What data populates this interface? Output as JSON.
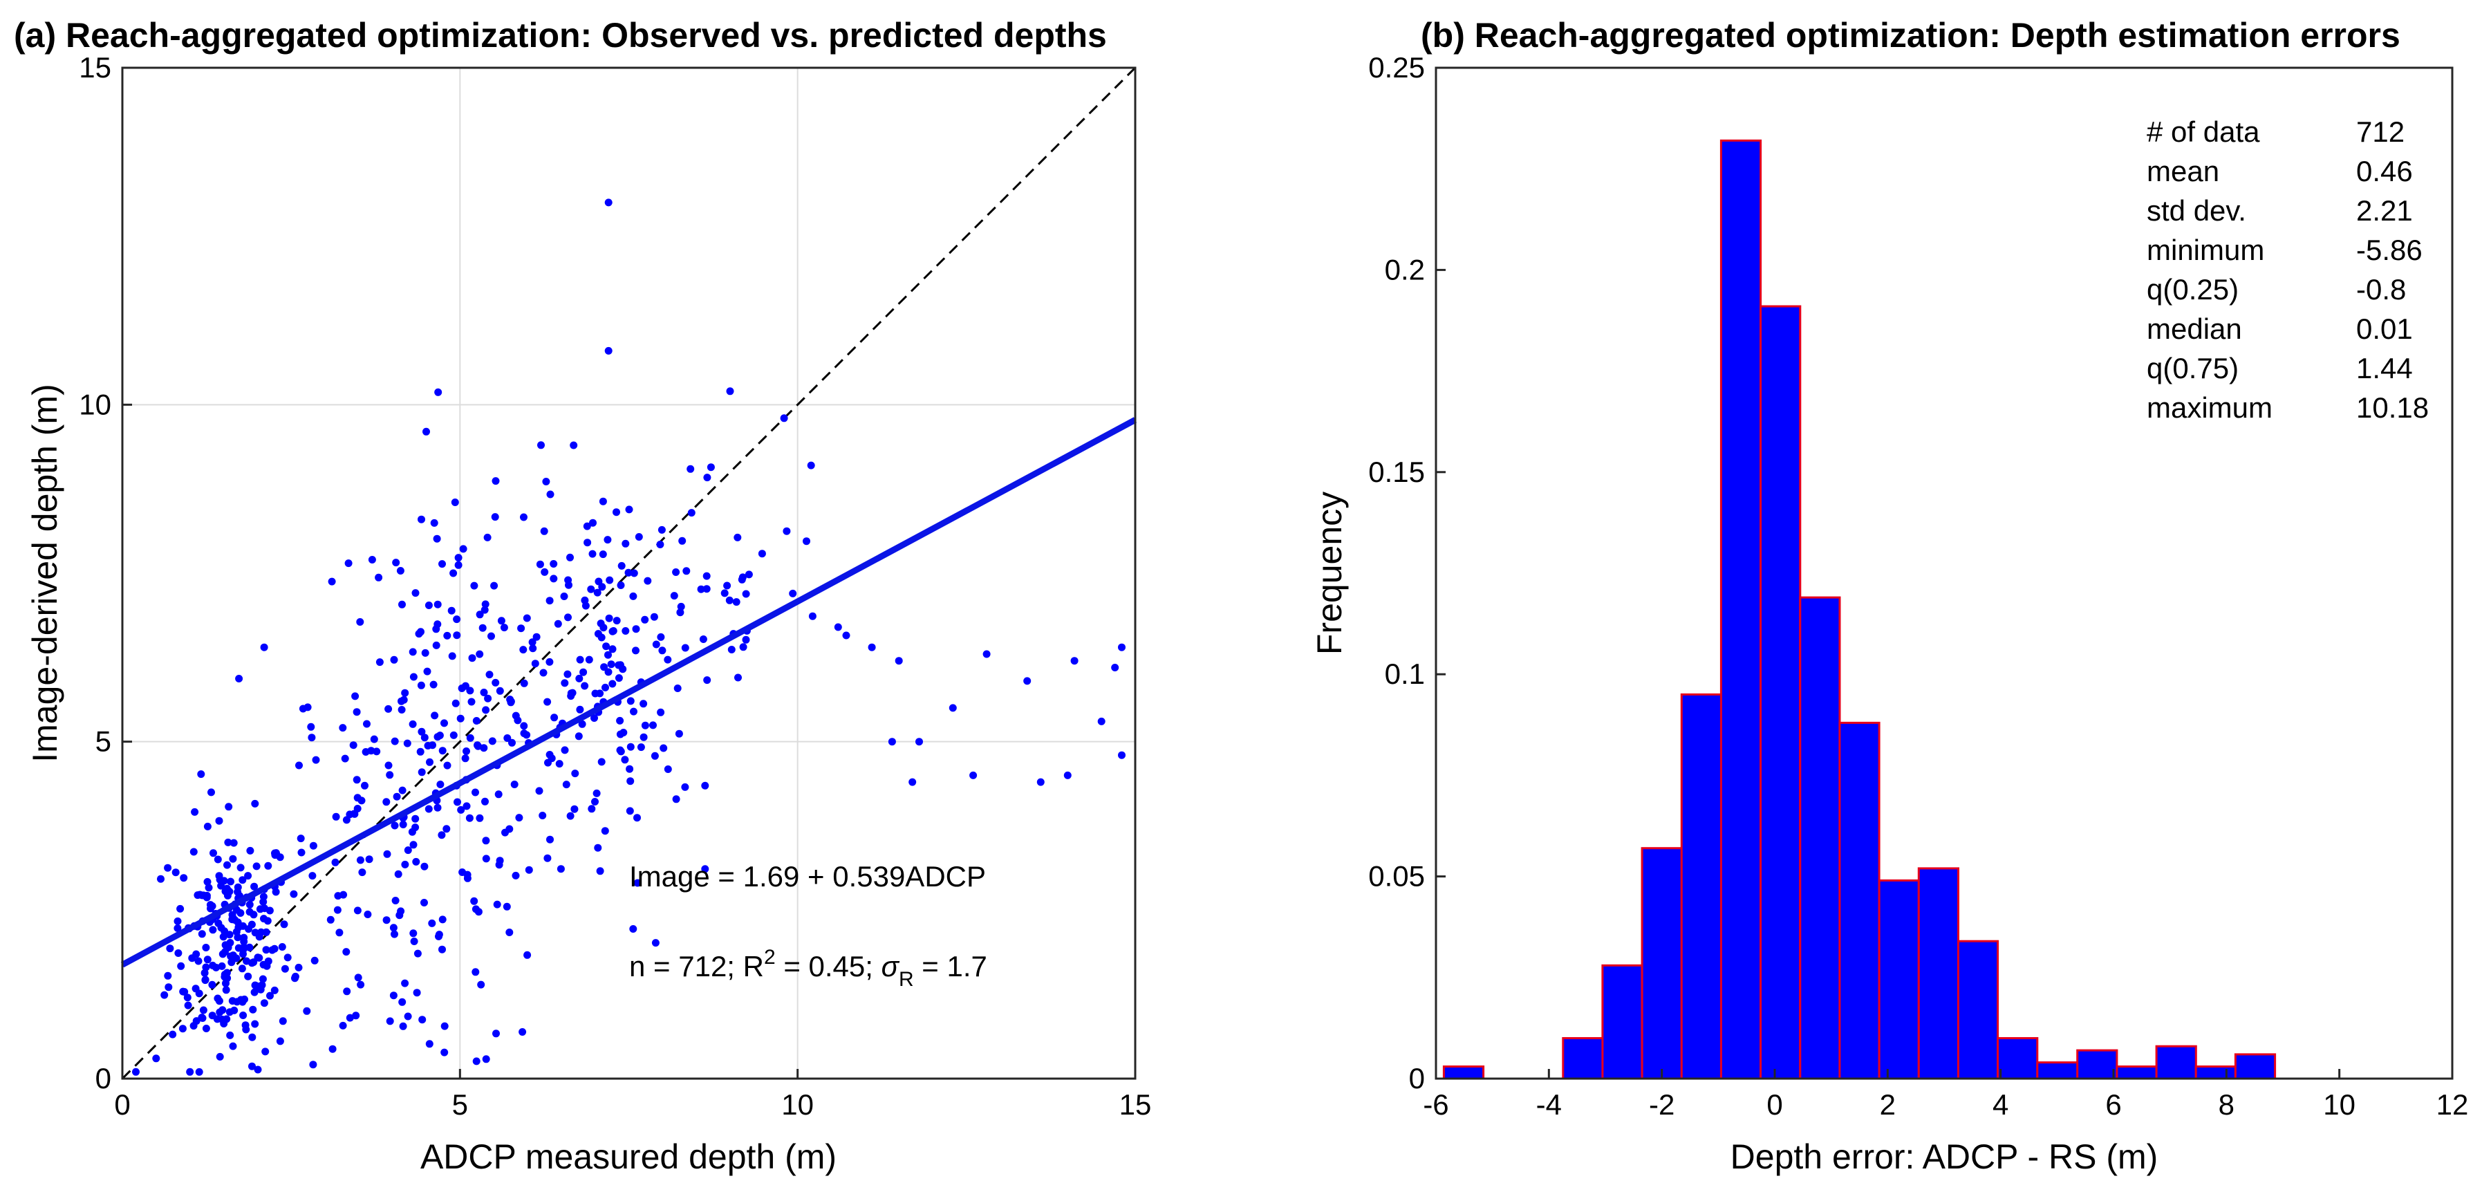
{
  "chart_data": [
    {
      "type": "scatter",
      "title": "(a) Reach-aggregated optimization: Observed vs. predicted depths",
      "xlabel": "ADCP measured depth (m)",
      "ylabel": "Image-derived depth (m)",
      "xlim": [
        0,
        15
      ],
      "ylim": [
        0,
        15
      ],
      "xticks": [
        "0",
        "5",
        "10",
        "15"
      ],
      "yticks": [
        "0",
        "5",
        "10",
        "15"
      ],
      "grid": true,
      "point_color": "#0000ff",
      "fit_color": "#0a14e6",
      "n_points": 712,
      "fit": {
        "intercept": 1.69,
        "slope": 0.539
      },
      "identity_line": true,
      "annotations": {
        "equation": "Image = 1.69 + 0.539ADCP",
        "stats_prefix": "n = 712; R",
        "stats_sup": "2",
        "stats_mid": " = 0.45; ",
        "stats_sigma": "σ",
        "stats_sub": "R",
        "stats_suffix": " = 1.7"
      },
      "highlight_points": [
        {
          "x": 7.2,
          "y": 13.0
        },
        {
          "x": 7.2,
          "y": 10.8
        },
        {
          "x": 9.0,
          "y": 10.2
        },
        {
          "x": 4.5,
          "y": 9.6
        },
        {
          "x": 6.2,
          "y": 9.4
        },
        {
          "x": 10.2,
          "y": 9.1
        },
        {
          "x": 9.8,
          "y": 9.8
        },
        {
          "x": 14.8,
          "y": 6.4
        },
        {
          "x": 14.1,
          "y": 6.2
        },
        {
          "x": 14.7,
          "y": 6.1
        },
        {
          "x": 12.8,
          "y": 6.3
        },
        {
          "x": 13.4,
          "y": 5.9
        },
        {
          "x": 12.3,
          "y": 5.5
        },
        {
          "x": 11.8,
          "y": 5.0
        },
        {
          "x": 13.6,
          "y": 4.4
        },
        {
          "x": 14.5,
          "y": 5.3
        },
        {
          "x": 14.8,
          "y": 4.8
        },
        {
          "x": 12.6,
          "y": 4.5
        },
        {
          "x": 14.0,
          "y": 4.5
        },
        {
          "x": 11.7,
          "y": 4.4
        },
        {
          "x": 11.4,
          "y": 5.0
        },
        {
          "x": 10.6,
          "y": 6.7
        },
        {
          "x": 11.1,
          "y": 6.4
        },
        {
          "x": 11.5,
          "y": 6.2
        },
        {
          "x": 0.2,
          "y": 0.1
        },
        {
          "x": 0.5,
          "y": 0.3
        },
        {
          "x": 1.0,
          "y": 0.1
        },
        {
          "x": 2.1,
          "y": 6.4
        },
        {
          "x": 3.7,
          "y": 7.7
        },
        {
          "x": 4.9,
          "y": 7.5
        }
      ]
    },
    {
      "type": "bar",
      "title": "(b) Reach-aggregated optimization: Depth estimation errors",
      "xlabel": "Depth error: ADCP - RS (m)",
      "ylabel": "Frequency",
      "xlim": [
        -6,
        12
      ],
      "ylim": [
        0,
        0.25
      ],
      "xticks": [
        "-6",
        "-4",
        "-2",
        "0",
        "2",
        "4",
        "6",
        "8",
        "10",
        "12"
      ],
      "yticks": [
        "0",
        "0.05",
        "0.1",
        "0.15",
        "0.2",
        "0.25"
      ],
      "bar_color": "#0000ff",
      "edge_color": "#e6001c",
      "bin_edges": [
        -5.86,
        -5.16,
        -4.46,
        -3.75,
        -3.05,
        -2.35,
        -1.65,
        -0.95,
        -0.25,
        0.45,
        1.15,
        1.85,
        2.55,
        3.25,
        3.95,
        4.65,
        5.36,
        6.06,
        6.76,
        7.46,
        8.16,
        8.86,
        9.56,
        10.26
      ],
      "values": [
        0.003,
        0.0,
        0.0,
        0.01,
        0.028,
        0.057,
        0.095,
        0.232,
        0.191,
        0.119,
        0.088,
        0.049,
        0.052,
        0.034,
        0.01,
        0.004,
        0.007,
        0.003,
        0.008,
        0.003,
        0.006,
        0.0,
        0.0
      ],
      "stats": [
        {
          "label": "# of data",
          "value": "712"
        },
        {
          "label": "mean",
          "value": "0.46"
        },
        {
          "label": "std dev.",
          "value": "2.21"
        },
        {
          "label": "minimum",
          "value": "-5.86"
        },
        {
          "label": "q(0.25)",
          "value": "-0.8"
        },
        {
          "label": "median",
          "value": "0.01"
        },
        {
          "label": "q(0.75)",
          "value": "1.44"
        },
        {
          "label": "maximum",
          "value": "10.18"
        }
      ]
    }
  ]
}
